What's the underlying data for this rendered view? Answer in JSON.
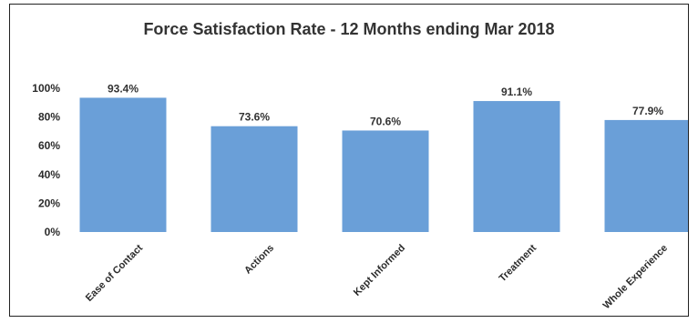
{
  "chart_data": {
    "type": "bar",
    "title": "Force Satisfaction Rate - 12 Months ending Mar 2018",
    "xlabel": "",
    "ylabel": "",
    "categories": [
      "Ease of Contact",
      "Actions",
      "Kept Informed",
      "Treatment",
      "Whole Experience"
    ],
    "values": [
      93.4,
      73.6,
      70.6,
      91.1,
      77.9
    ],
    "data_labels": [
      "93.4%",
      "73.6%",
      "70.6%",
      "91.1%",
      "77.9%"
    ],
    "ylim": [
      0,
      100
    ],
    "yticks": [
      0,
      20,
      40,
      60,
      80,
      100
    ],
    "ytick_labels": [
      "0%",
      "20%",
      "40%",
      "60%",
      "80%",
      "100%"
    ],
    "grid": false,
    "legend": "none",
    "bar_color": "#6a9fd8"
  }
}
